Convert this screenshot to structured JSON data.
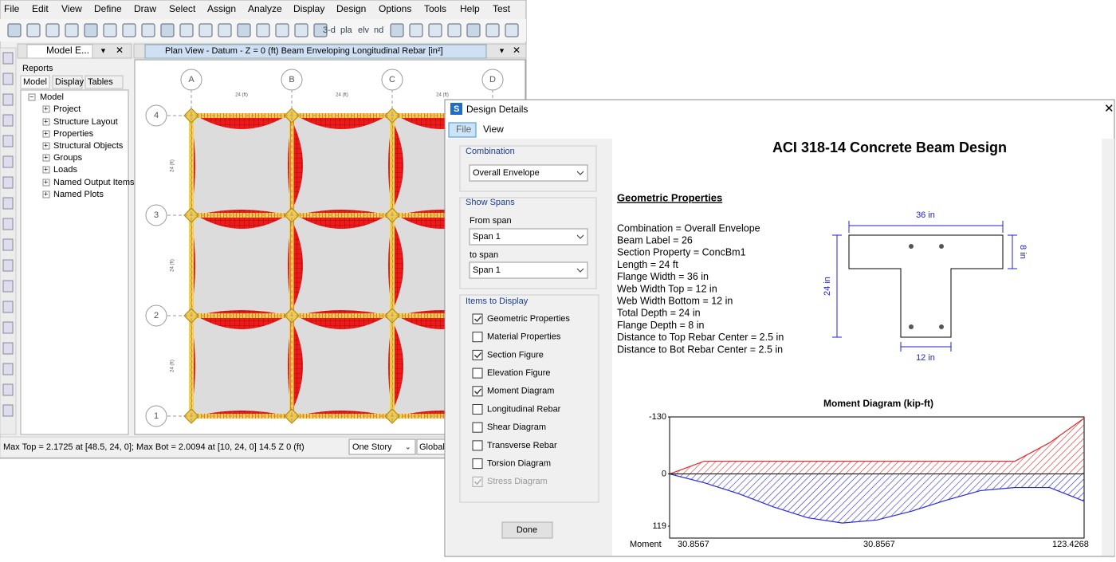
{
  "menu": [
    "File",
    "Edit",
    "View",
    "Define",
    "Draw",
    "Select",
    "Assign",
    "Analyze",
    "Display",
    "Design",
    "Options",
    "Tools",
    "Help",
    "Test"
  ],
  "toolbar_labels": [
    "3-d",
    "pla",
    "elv",
    "nd"
  ],
  "model_explorer": {
    "tab": "Model E...",
    "top_tab": "Reports",
    "tabs": [
      "Model",
      "Display",
      "Tables"
    ],
    "tree": {
      "root": "Model",
      "items": [
        "Project",
        "Structure Layout",
        "Properties",
        "Structural Objects",
        "Groups",
        "Loads",
        "Named Output Items",
        "Named Plots"
      ]
    }
  },
  "plan_view": {
    "title": "Plan View - Datum - Z = 0 (ft)  Beam Enveloping Longitudinal Rebar  [in²]",
    "grid_columns": [
      "A",
      "B",
      "C",
      "D"
    ],
    "grid_rows": [
      "4",
      "3",
      "2",
      "1"
    ],
    "spacing_label": "24 (ft)"
  },
  "status_bar": {
    "text": "Max Top = 2.1725 at [48.5, 24, 0];  Max Bot = 2.0094 at [10, 24, 0]  14.5  Z 0 (ft)",
    "story": "One Story",
    "coord": "Global"
  },
  "design_details": {
    "title": "Design Details",
    "menu": [
      "File",
      "View"
    ],
    "combination": {
      "label": "Combination",
      "value": "Overall Envelope"
    },
    "show_spans": {
      "label": "Show Spans",
      "from_label": "From span",
      "from_value": "Span 1",
      "to_label": "to span",
      "to_value": "Span 1"
    },
    "items_to_display": {
      "label": "Items to Display",
      "items": [
        {
          "label": "Geometric Properties",
          "checked": true,
          "enabled": true
        },
        {
          "label": "Material Properties",
          "checked": false,
          "enabled": true
        },
        {
          "label": "Section Figure",
          "checked": true,
          "enabled": true
        },
        {
          "label": "Elevation Figure",
          "checked": false,
          "enabled": true
        },
        {
          "label": "Moment Diagram",
          "checked": true,
          "enabled": true
        },
        {
          "label": "Longitudinal Rebar",
          "checked": false,
          "enabled": true
        },
        {
          "label": "Shear Diagram",
          "checked": false,
          "enabled": true
        },
        {
          "label": "Transverse Rebar",
          "checked": false,
          "enabled": true
        },
        {
          "label": "Torsion Diagram",
          "checked": false,
          "enabled": true
        },
        {
          "label": "Stress Diagram",
          "checked": true,
          "enabled": false
        }
      ]
    },
    "done": "Done",
    "report": {
      "title": "ACI 318-14 Concrete Beam Design",
      "section_heading": "Geometric Properties",
      "properties": [
        "Combination = Overall Envelope",
        "Beam Label = 26",
        "Section Property = ConcBm1",
        "Length = 24 ft",
        "Flange Width = 36 in",
        "Web Width Top = 12 in",
        "Web Width Bottom = 12 in",
        "Total Depth = 24 in",
        "Flange Depth = 8 in",
        "Distance to Top Rebar Center = 2.5 in",
        "Distance to Bot Rebar Center = 2.5 in"
      ],
      "section_figure": {
        "flange_width": "36 in",
        "flange_depth": "8 in",
        "total_depth": "24 in",
        "web_width": "12 in"
      },
      "chart_data": {
        "type": "area",
        "title": "Moment Diagram (kip-ft)",
        "categories": [
          null,
          null,
          null,
          null,
          null,
          null,
          null,
          null,
          null,
          null,
          null,
          null,
          null
        ],
        "series": [
          {
            "color": "#e02828",
            "values": [
              0,
              -29,
              -29,
              -29,
              -29,
              -29,
              -29,
              -29,
              -29,
              -29,
              -29,
              -71,
              -127
            ]
          },
          {
            "color": "#2828d8",
            "values": [
              0,
              20,
              45,
              75,
              100,
              112,
              105,
              85,
              60,
              38,
              31,
              31,
              62
            ]
          }
        ],
        "ylim": [
          -130,
          119
        ],
        "yticks": [
          -130,
          0,
          119
        ]
      },
      "moment_table": {
        "label": "Moment",
        "values": [
          30.8567,
          30.8567,
          123.4268
        ]
      }
    }
  }
}
